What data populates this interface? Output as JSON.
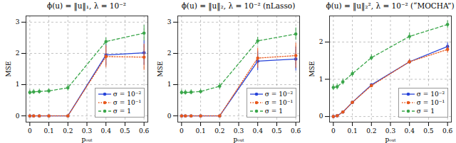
{
  "chart_data": [
    {
      "type": "line",
      "title": "ϕ(u) = ‖u‖₁, λ = 10⁻²",
      "x_label": "pₒᵤₜ",
      "y_label": "MSE",
      "x": [
        0,
        0.02,
        0.05,
        0.1,
        0.2,
        0.4,
        0.6
      ],
      "xlim": [
        -0.02,
        0.62
      ],
      "xticks": [
        0,
        0.1,
        0.2,
        0.3,
        0.4,
        0.5,
        0.6
      ],
      "ylim": [
        -0.2,
        3.2
      ],
      "yticks": [
        0,
        1,
        2,
        3
      ],
      "grid": true,
      "legend": "lower right",
      "series": [
        {
          "name": "σ = 10⁻²",
          "color": "#2643d9",
          "line_style": "solid",
          "marker": "circle",
          "values": [
            0,
            0,
            0,
            0,
            0,
            1.95,
            2.02
          ],
          "errors": [
            0.01,
            0.01,
            0.01,
            0.01,
            0.01,
            0.35,
            0.4
          ]
        },
        {
          "name": "σ = 10⁻¹",
          "color": "#e8581c",
          "line_style": "dotted",
          "marker": "circle",
          "values": [
            0,
            0,
            0,
            0,
            0,
            1.9,
            1.88
          ],
          "errors": [
            0.01,
            0.01,
            0.01,
            0.01,
            0.01,
            0.35,
            0.42
          ]
        },
        {
          "name": "σ = 1",
          "color": "#3aa64a",
          "line_style": "dashed",
          "marker": "circle",
          "values": [
            0.75,
            0.77,
            0.78,
            0.8,
            0.9,
            2.38,
            2.65
          ],
          "errors": [
            0.08,
            0.08,
            0.08,
            0.07,
            0.1,
            0.12,
            0.25
          ]
        }
      ]
    },
    {
      "type": "line",
      "title": "ϕ(u) = ‖u‖₂, λ = 10⁻² (nLasso)",
      "x_label": "pₒᵤₜ",
      "y_label": "MSE",
      "x": [
        0,
        0.02,
        0.05,
        0.1,
        0.2,
        0.4,
        0.6
      ],
      "xlim": [
        -0.02,
        0.62
      ],
      "xticks": [
        0,
        0.1,
        0.2,
        0.3,
        0.4,
        0.5,
        0.6
      ],
      "ylim": [
        -0.2,
        3.2
      ],
      "yticks": [
        0,
        1,
        2,
        3
      ],
      "grid": true,
      "legend": "lower right",
      "series": [
        {
          "name": "σ = 10⁻²",
          "color": "#2643d9",
          "line_style": "solid",
          "marker": "circle",
          "values": [
            0,
            0,
            0,
            0,
            0,
            1.75,
            1.82
          ],
          "errors": [
            0.01,
            0.01,
            0.01,
            0.01,
            0.01,
            0.3,
            0.38
          ]
        },
        {
          "name": "σ = 10⁻¹",
          "color": "#e8581c",
          "line_style": "dotted",
          "marker": "circle",
          "values": [
            0,
            0,
            0,
            0,
            0,
            1.85,
            1.93
          ],
          "errors": [
            0.01,
            0.01,
            0.01,
            0.01,
            0.01,
            0.32,
            0.4
          ]
        },
        {
          "name": "σ = 1",
          "color": "#3aa64a",
          "line_style": "dashed",
          "marker": "circle",
          "values": [
            0.75,
            0.75,
            0.76,
            0.78,
            0.95,
            2.4,
            2.62
          ],
          "errors": [
            0.08,
            0.08,
            0.08,
            0.07,
            0.1,
            0.12,
            0.2
          ]
        }
      ]
    },
    {
      "type": "line",
      "title": "ϕ(u) = ‖u‖₂², λ = 10⁻² (“MOCHA”)",
      "x_label": "pₒᵤₜ",
      "y_label": "MSE",
      "x": [
        0,
        0.02,
        0.05,
        0.1,
        0.2,
        0.4,
        0.6
      ],
      "xlim": [
        -0.02,
        0.62
      ],
      "xticks": [
        0,
        0.1,
        0.2,
        0.3,
        0.4,
        0.5,
        0.6
      ],
      "ylim": [
        -0.15,
        2.7
      ],
      "yticks": [
        0,
        1,
        2
      ],
      "grid": true,
      "legend": "lower right",
      "series": [
        {
          "name": "σ = 10⁻²",
          "color": "#2643d9",
          "line_style": "solid",
          "marker": "circle",
          "values": [
            0,
            0.02,
            0.12,
            0.38,
            0.85,
            1.47,
            1.88
          ],
          "errors": [
            0.01,
            0.01,
            0.02,
            0.02,
            0.03,
            0.06,
            0.1
          ]
        },
        {
          "name": "σ = 10⁻¹",
          "color": "#e8581c",
          "line_style": "dotted",
          "marker": "circle",
          "values": [
            0,
            0.02,
            0.12,
            0.38,
            0.83,
            1.47,
            1.8
          ],
          "errors": [
            0.01,
            0.01,
            0.02,
            0.02,
            0.03,
            0.06,
            0.1
          ]
        },
        {
          "name": "σ = 1",
          "color": "#3aa64a",
          "line_style": "dashed",
          "marker": "circle",
          "values": [
            0.78,
            0.8,
            0.93,
            1.15,
            1.58,
            2.15,
            2.47
          ],
          "errors": [
            0.08,
            0.08,
            0.08,
            0.08,
            0.08,
            0.1,
            0.1
          ]
        }
      ]
    }
  ]
}
